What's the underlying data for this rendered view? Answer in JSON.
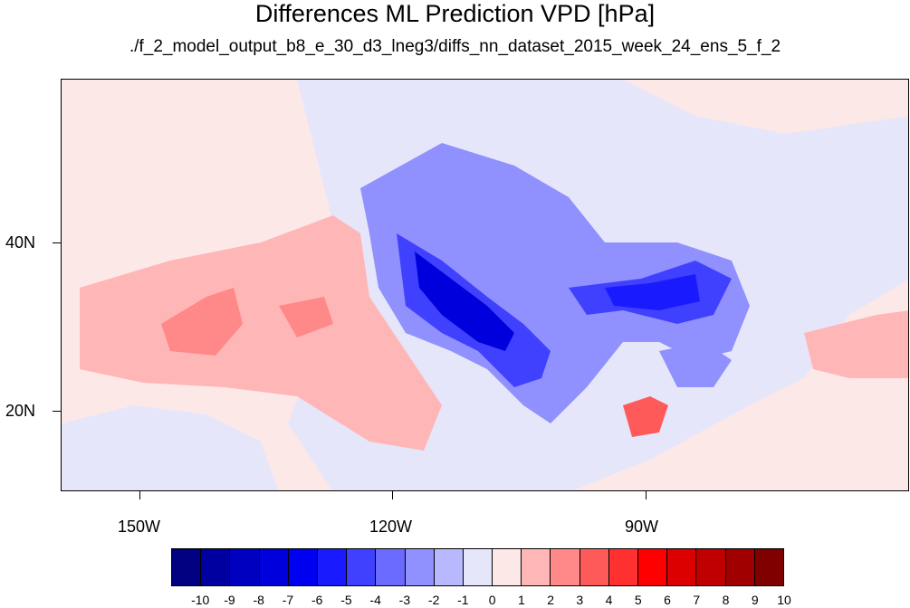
{
  "title": "Differences ML Prediction VPD [hPa]",
  "subtitle": "./f_2_model_output_b8_e_30_d3_lneg3/diffs_nn_dataset_2015_week_24_ens_5_f_2",
  "chart_data": {
    "type": "heatmap",
    "variable": "VPD",
    "units": "hPa",
    "x_axis": {
      "ticks": [
        "150W",
        "120W",
        "90W"
      ],
      "range_deg": [
        -160,
        -62
      ]
    },
    "y_axis": {
      "ticks": [
        "20N",
        "40N"
      ],
      "range_deg": [
        11,
        60
      ]
    },
    "colorbar": {
      "levels": [
        "-10",
        "-9",
        "-8",
        "-7",
        "-6",
        "-5",
        "-4",
        "-3",
        "-2",
        "-1",
        "0",
        "1",
        "2",
        "3",
        "4",
        "5",
        "6",
        "7",
        "8",
        "9",
        "10"
      ],
      "colors": [
        "#000080",
        "#0000a0",
        "#0000c0",
        "#0000dc",
        "#0000f0",
        "#1a1aff",
        "#4040ff",
        "#6a6aff",
        "#9090ff",
        "#b8b8ff",
        "#e6e6fa",
        "#fde8e8",
        "#ffb6b6",
        "#ff8888",
        "#ff5a5a",
        "#ff3030",
        "#ff0000",
        "#dc0000",
        "#c00000",
        "#a00000",
        "#800000"
      ]
    },
    "description_regions": {
      "western_us_southwest": -8,
      "southeast_us": -6,
      "great_plains": -2,
      "eastern_pacific": 2,
      "caribbean": 5
    }
  }
}
